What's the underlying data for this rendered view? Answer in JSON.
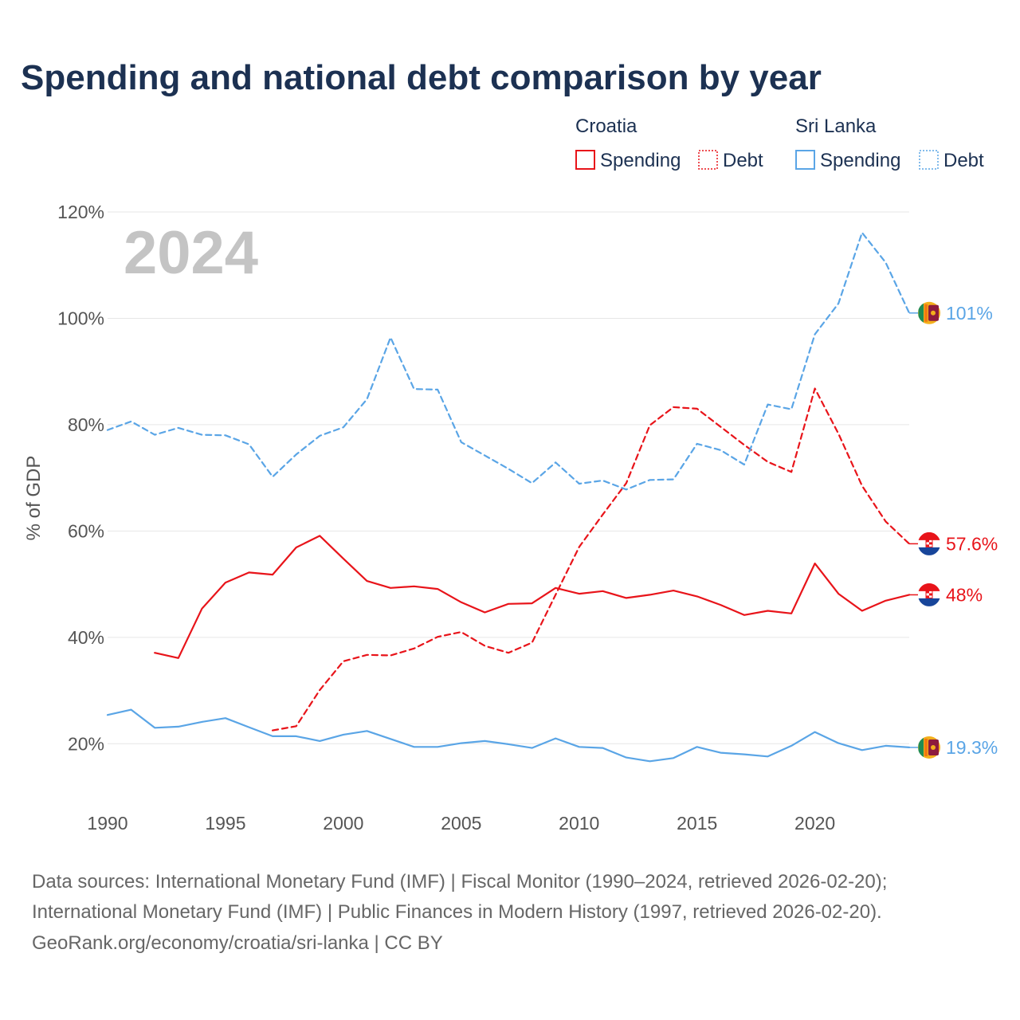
{
  "title": "Spending and national debt comparison by year",
  "year_watermark": "2024",
  "colors": {
    "croatia": "#e8141a",
    "sri_lanka": "#5aa5e6",
    "title": "#1c3152"
  },
  "legend": {
    "groups": [
      {
        "name": "Croatia",
        "items": [
          {
            "label": "Spending",
            "style": "solid"
          },
          {
            "label": "Debt",
            "style": "dotted"
          }
        ]
      },
      {
        "name": "Sri Lanka",
        "items": [
          {
            "label": "Spending",
            "style": "solid"
          },
          {
            "label": "Debt",
            "style": "dotted"
          }
        ]
      }
    ]
  },
  "chart_data": {
    "type": "line",
    "title": "Spending and national debt comparison by year",
    "xlabel": "",
    "ylabel": "% of GDP",
    "xlim": [
      1990,
      2024
    ],
    "ylim": [
      10,
      120
    ],
    "x_ticks": [
      1990,
      1995,
      2000,
      2005,
      2010,
      2015,
      2020
    ],
    "y_ticks": [
      20,
      40,
      60,
      80,
      100,
      120
    ],
    "y_tick_labels": [
      "20%",
      "40%",
      "60%",
      "80%",
      "100%",
      "120%"
    ],
    "grid": true,
    "series": [
      {
        "name": "Croatia Spending",
        "country": "croatia",
        "dashed": false,
        "end_label": "48%",
        "x": [
          1992,
          1993,
          1994,
          1995,
          1996,
          1997,
          1998,
          1999,
          2000,
          2001,
          2002,
          2003,
          2004,
          2005,
          2006,
          2007,
          2008,
          2009,
          2010,
          2011,
          2012,
          2013,
          2014,
          2015,
          2016,
          2017,
          2018,
          2019,
          2020,
          2021,
          2022,
          2023,
          2024
        ],
        "values": [
          37.1,
          36.1,
          45.4,
          50.3,
          52.2,
          51.8,
          56.9,
          59.1,
          54.8,
          50.6,
          49.3,
          49.6,
          49.1,
          46.6,
          44.7,
          46.3,
          46.4,
          49.3,
          48.2,
          48.7,
          47.4,
          48.0,
          48.8,
          47.7,
          46.1,
          44.2,
          45.0,
          44.5,
          53.9,
          48.2,
          45.0,
          46.9,
          48.0
        ]
      },
      {
        "name": "Croatia Debt",
        "country": "croatia",
        "dashed": true,
        "end_label": "57.6%",
        "x": [
          1997,
          1998,
          1999,
          2000,
          2001,
          2002,
          2003,
          2004,
          2005,
          2006,
          2007,
          2008,
          2009,
          2010,
          2011,
          2012,
          2013,
          2014,
          2015,
          2016,
          2017,
          2018,
          2019,
          2020,
          2021,
          2022,
          2023,
          2024
        ],
        "values": [
          22.5,
          23.3,
          30.1,
          35.5,
          36.7,
          36.6,
          37.9,
          40.1,
          41.0,
          38.4,
          37.1,
          39.0,
          48.0,
          57.0,
          63.1,
          69.0,
          79.9,
          83.3,
          83.0,
          79.6,
          76.2,
          73.0,
          71.1,
          86.8,
          78.3,
          68.5,
          61.8,
          57.6
        ]
      },
      {
        "name": "Sri Lanka Spending",
        "country": "sri_lanka",
        "dashed": false,
        "end_label": "19.3%",
        "x": [
          1990,
          1991,
          1992,
          1993,
          1994,
          1995,
          1996,
          1997,
          1998,
          1999,
          2000,
          2001,
          2002,
          2003,
          2004,
          2005,
          2006,
          2007,
          2008,
          2009,
          2010,
          2011,
          2012,
          2013,
          2014,
          2015,
          2016,
          2017,
          2018,
          2019,
          2020,
          2021,
          2022,
          2023,
          2024
        ],
        "values": [
          25.4,
          26.4,
          23.0,
          23.2,
          24.1,
          24.8,
          23.1,
          21.4,
          21.4,
          20.5,
          21.7,
          22.4,
          20.9,
          19.4,
          19.4,
          20.1,
          20.5,
          19.9,
          19.2,
          21.0,
          19.4,
          19.2,
          17.4,
          16.7,
          17.3,
          19.4,
          18.3,
          18.0,
          17.6,
          19.6,
          22.2,
          20.1,
          18.8,
          19.6,
          19.3
        ]
      },
      {
        "name": "Sri Lanka Debt",
        "country": "sri_lanka",
        "dashed": true,
        "end_label": "101%",
        "x": [
          1990,
          1991,
          1992,
          1993,
          1994,
          1995,
          1996,
          1997,
          1998,
          1999,
          2000,
          2001,
          2002,
          2003,
          2004,
          2005,
          2006,
          2007,
          2008,
          2009,
          2010,
          2011,
          2012,
          2013,
          2014,
          2015,
          2016,
          2017,
          2018,
          2019,
          2020,
          2021,
          2022,
          2023,
          2024
        ],
        "values": [
          79.0,
          80.6,
          78.1,
          79.4,
          78.1,
          78.0,
          76.3,
          70.2,
          74.4,
          77.9,
          79.5,
          84.8,
          96.4,
          86.7,
          86.6,
          76.7,
          74.2,
          71.7,
          69.0,
          72.9,
          68.9,
          69.5,
          67.8,
          69.6,
          69.7,
          76.4,
          75.2,
          72.5,
          83.8,
          82.9,
          97.0,
          102.8,
          116.1,
          110.5,
          101.0
        ]
      }
    ]
  },
  "sources": {
    "line1": "Data sources: International Monetary Fund (IMF) | Fiscal Monitor (1990–2024, retrieved 2026-02-20);",
    "line2": "International Monetary Fund (IMF) | Public Finances in Modern History (1997, retrieved 2026-02-20).",
    "line3": "GeoRank.org/economy/croatia/sri-lanka | CC BY"
  }
}
